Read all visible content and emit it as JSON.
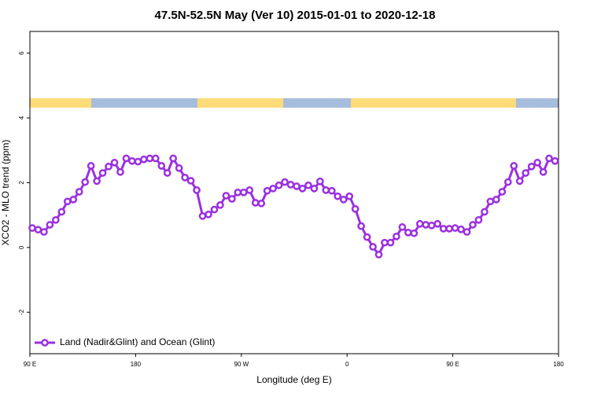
{
  "chart_data": {
    "type": "line",
    "title": "47.5N-52.5N May (Ver 10)   2015-01-01 to 2020-12-18",
    "x_label": "Longitude (deg E)",
    "y_label": "XCO2 - MLO trend (ppm)",
    "x": [
      92,
      97,
      102,
      107,
      112,
      117,
      122,
      127,
      132,
      137,
      142,
      147,
      152,
      157,
      162,
      167,
      172,
      177,
      182,
      187,
      192,
      197,
      202,
      207,
      212,
      217,
      222,
      227,
      232,
      237,
      242,
      247,
      252,
      257,
      262,
      267,
      272,
      277,
      282,
      287,
      292,
      297,
      302,
      307,
      312,
      317,
      322,
      327,
      332,
      337,
      342,
      347,
      352,
      357,
      362,
      367,
      372,
      377,
      382,
      387,
      392,
      397,
      402,
      407,
      412,
      417,
      422,
      427,
      432,
      437,
      442,
      447,
      452,
      457,
      462,
      467,
      472,
      477,
      482,
      487,
      492,
      497,
      502,
      507,
      512,
      517,
      522,
      527,
      532,
      537
    ],
    "series": [
      {
        "name": "Land (Nadir&Glint) and Ocean (Glint)",
        "color": "#9b30e0",
        "values": [
          0.6,
          0.55,
          0.48,
          0.7,
          0.85,
          1.1,
          1.42,
          1.48,
          1.72,
          2.02,
          2.52,
          2.05,
          2.3,
          2.5,
          2.62,
          2.33,
          2.75,
          2.67,
          2.65,
          2.72,
          2.75,
          2.75,
          2.52,
          2.3,
          2.75,
          2.45,
          2.16,
          2.06,
          1.77,
          0.97,
          1.02,
          1.17,
          1.31,
          1.6,
          1.5,
          1.7,
          1.7,
          1.77,
          1.38,
          1.36,
          1.75,
          1.82,
          1.92,
          2.02,
          1.94,
          1.89,
          1.82,
          1.92,
          1.82,
          2.04,
          1.77,
          1.75,
          1.58,
          1.48,
          1.58,
          1.19,
          0.66,
          0.32,
          0.02,
          -0.22,
          0.15,
          0.15,
          0.34,
          0.63,
          0.46,
          0.44,
          0.73,
          0.7,
          0.68,
          0.73,
          0.58,
          0.58,
          0.6,
          0.56,
          0.48,
          0.7,
          0.85,
          1.1,
          1.42,
          1.48,
          1.72,
          2.02,
          2.52,
          2.05,
          2.3,
          2.5,
          2.62,
          2.33,
          2.75,
          2.67
        ]
      }
    ],
    "xlim": [
      90,
      540
    ],
    "xticks": [
      {
        "value": 90,
        "label": "90 E"
      },
      180,
      {
        "value": 270,
        "label": "90 W"
      },
      {
        "value": 360,
        "label": "0"
      },
      {
        "value": 450,
        "label": "90 E"
      },
      {
        "value": 540,
        "label": "180"
      }
    ],
    "ylim": [
      -3.28,
      6.67
    ],
    "yticks": [
      -2,
      0,
      2,
      4,
      6
    ],
    "legend": "bottom-left"
  }
}
